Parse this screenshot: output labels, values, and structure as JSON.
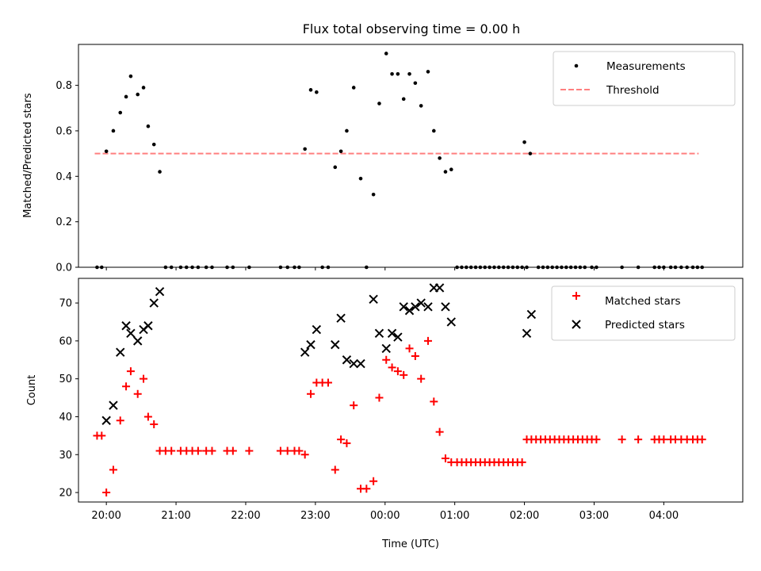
{
  "title": "Flux total observing time = 0.00 h",
  "colors": {
    "measure": "#000000",
    "threshold": "#ff7f7f",
    "matched": "#ff0000",
    "predicted": "#000000"
  },
  "chart_data": [
    {
      "type": "scatter",
      "ylabel": "Matched/Predicted stars",
      "xlim": [
        "19:36",
        "05:08"
      ],
      "ylim": [
        0,
        0.98
      ],
      "yticks": [
        "0.0",
        "0.2",
        "0.4",
        "0.6",
        "0.8"
      ],
      "legend": {
        "placement": "top-right",
        "measurements": "Measurements",
        "threshold": "Threshold"
      },
      "threshold": {
        "value": 0.5,
        "x_range": [
          "19:50",
          "04:30"
        ]
      },
      "series": [
        {
          "name": "Measurements",
          "points": [
            [
              "19:52",
              0
            ],
            [
              "19:56",
              0
            ],
            [
              "20:00",
              0.51
            ],
            [
              "20:06",
              0.6
            ],
            [
              "20:12",
              0.68
            ],
            [
              "20:17",
              0.75
            ],
            [
              "20:21",
              0.84
            ],
            [
              "20:27",
              0.76
            ],
            [
              "20:32",
              0.79
            ],
            [
              "20:36",
              0.62
            ],
            [
              "20:41",
              0.54
            ],
            [
              "20:46",
              0.42
            ],
            [
              "20:51",
              0
            ],
            [
              "20:56",
              0
            ],
            [
              "21:04",
              0
            ],
            [
              "21:09",
              0
            ],
            [
              "21:14",
              0
            ],
            [
              "21:19",
              0
            ],
            [
              "21:26",
              0
            ],
            [
              "21:31",
              0
            ],
            [
              "21:44",
              0
            ],
            [
              "21:49",
              0
            ],
            [
              "22:03",
              0
            ],
            [
              "22:30",
              0
            ],
            [
              "22:36",
              0
            ],
            [
              "22:42",
              0
            ],
            [
              "22:46",
              0
            ],
            [
              "22:51",
              0.52
            ],
            [
              "22:56",
              0.78
            ],
            [
              "23:01",
              0.77
            ],
            [
              "23:06",
              0
            ],
            [
              "23:11",
              0
            ],
            [
              "23:17",
              0.44
            ],
            [
              "23:22",
              0.51
            ],
            [
              "23:27",
              0.6
            ],
            [
              "23:33",
              0.79
            ],
            [
              "23:39",
              0.39
            ],
            [
              "23:44",
              0
            ],
            [
              "23:50",
              0.32
            ],
            [
              "23:55",
              0.72
            ],
            [
              "00:01",
              0.94
            ],
            [
              "00:06",
              0.85
            ],
            [
              "00:11",
              0.85
            ],
            [
              "00:16",
              0.74
            ],
            [
              "00:21",
              0.85
            ],
            [
              "00:26",
              0.81
            ],
            [
              "00:31",
              0.71
            ],
            [
              "00:37",
              0.86
            ],
            [
              "00:42",
              0.6
            ],
            [
              "00:47",
              0.48
            ],
            [
              "00:52",
              0.42
            ],
            [
              "00:57",
              0.43
            ],
            [
              "01:02",
              0
            ],
            [
              "01:06",
              0
            ],
            [
              "01:10",
              0
            ],
            [
              "01:14",
              0
            ],
            [
              "01:18",
              0
            ],
            [
              "01:22",
              0
            ],
            [
              "01:26",
              0
            ],
            [
              "01:30",
              0
            ],
            [
              "01:34",
              0
            ],
            [
              "01:38",
              0
            ],
            [
              "01:42",
              0
            ],
            [
              "01:46",
              0
            ],
            [
              "01:50",
              0
            ],
            [
              "01:54",
              0
            ],
            [
              "01:58",
              0
            ],
            [
              "02:02",
              0
            ],
            [
              "02:00",
              0.55
            ],
            [
              "02:05",
              0.5
            ],
            [
              "02:12",
              0
            ],
            [
              "02:16",
              0
            ],
            [
              "02:20",
              0
            ],
            [
              "02:24",
              0
            ],
            [
              "02:28",
              0
            ],
            [
              "02:32",
              0
            ],
            [
              "02:36",
              0
            ],
            [
              "02:40",
              0
            ],
            [
              "02:44",
              0
            ],
            [
              "02:48",
              0
            ],
            [
              "02:52",
              0
            ],
            [
              "02:58",
              0
            ],
            [
              "03:02",
              0
            ],
            [
              "03:24",
              0
            ],
            [
              "03:38",
              0
            ],
            [
              "03:52",
              0
            ],
            [
              "03:56",
              0
            ],
            [
              "04:00",
              0
            ],
            [
              "04:06",
              0
            ],
            [
              "04:10",
              0
            ],
            [
              "04:15",
              0
            ],
            [
              "04:20",
              0
            ],
            [
              "04:25",
              0
            ],
            [
              "04:29",
              0
            ],
            [
              "04:33",
              0
            ]
          ]
        }
      ]
    },
    {
      "type": "scatter",
      "ylabel": "Count",
      "xlabel": "Time (UTC)",
      "xlim": [
        "19:36",
        "05:08"
      ],
      "ylim": [
        17.5,
        76.5
      ],
      "yticks": [
        "20",
        "30",
        "40",
        "50",
        "60",
        "70"
      ],
      "xticks": [
        "20:00",
        "21:00",
        "22:00",
        "23:00",
        "00:00",
        "01:00",
        "02:00",
        "03:00",
        "04:00"
      ],
      "legend": {
        "placement": "top-right",
        "matched": "Matched stars",
        "predicted": "Predicted stars"
      },
      "series": [
        {
          "name": "Matched stars",
          "points": [
            [
              "19:52",
              35
            ],
            [
              "19:56",
              35
            ],
            [
              "20:00",
              20
            ],
            [
              "20:06",
              26
            ],
            [
              "20:12",
              39
            ],
            [
              "20:17",
              48
            ],
            [
              "20:21",
              52
            ],
            [
              "20:27",
              46
            ],
            [
              "20:32",
              50
            ],
            [
              "20:36",
              40
            ],
            [
              "20:41",
              38
            ],
            [
              "20:46",
              31
            ],
            [
              "20:51",
              31
            ],
            [
              "20:56",
              31
            ],
            [
              "21:04",
              31
            ],
            [
              "21:09",
              31
            ],
            [
              "21:14",
              31
            ],
            [
              "21:19",
              31
            ],
            [
              "21:26",
              31
            ],
            [
              "21:31",
              31
            ],
            [
              "21:44",
              31
            ],
            [
              "21:49",
              31
            ],
            [
              "22:03",
              31
            ],
            [
              "22:30",
              31
            ],
            [
              "22:36",
              31
            ],
            [
              "22:42",
              31
            ],
            [
              "22:46",
              31
            ],
            [
              "22:51",
              30
            ],
            [
              "22:56",
              46
            ],
            [
              "23:01",
              49
            ],
            [
              "23:06",
              49
            ],
            [
              "23:11",
              49
            ],
            [
              "23:17",
              26
            ],
            [
              "23:22",
              34
            ],
            [
              "23:27",
              33
            ],
            [
              "23:33",
              43
            ],
            [
              "23:39",
              21
            ],
            [
              "23:44",
              21
            ],
            [
              "23:50",
              23
            ],
            [
              "23:55",
              45
            ],
            [
              "00:01",
              55
            ],
            [
              "00:06",
              53
            ],
            [
              "00:11",
              52
            ],
            [
              "00:16",
              51
            ],
            [
              "00:21",
              58
            ],
            [
              "00:26",
              56
            ],
            [
              "00:31",
              50
            ],
            [
              "00:37",
              60
            ],
            [
              "00:42",
              44
            ],
            [
              "00:47",
              36
            ],
            [
              "00:52",
              29
            ],
            [
              "00:57",
              28
            ],
            [
              "01:02",
              28
            ],
            [
              "01:06",
              28
            ],
            [
              "01:10",
              28
            ],
            [
              "01:14",
              28
            ],
            [
              "01:18",
              28
            ],
            [
              "01:22",
              28
            ],
            [
              "01:26",
              28
            ],
            [
              "01:30",
              28
            ],
            [
              "01:34",
              28
            ],
            [
              "01:38",
              28
            ],
            [
              "01:42",
              28
            ],
            [
              "01:46",
              28
            ],
            [
              "01:50",
              28
            ],
            [
              "01:54",
              28
            ],
            [
              "01:58",
              28
            ],
            [
              "02:02",
              34
            ],
            [
              "02:06",
              34
            ],
            [
              "02:10",
              34
            ],
            [
              "02:14",
              34
            ],
            [
              "02:18",
              34
            ],
            [
              "02:22",
              34
            ],
            [
              "02:26",
              34
            ],
            [
              "02:30",
              34
            ],
            [
              "02:34",
              34
            ],
            [
              "02:38",
              34
            ],
            [
              "02:42",
              34
            ],
            [
              "02:46",
              34
            ],
            [
              "02:50",
              34
            ],
            [
              "02:54",
              34
            ],
            [
              "02:58",
              34
            ],
            [
              "03:02",
              34
            ],
            [
              "03:24",
              34
            ],
            [
              "03:38",
              34
            ],
            [
              "03:52",
              34
            ],
            [
              "03:56",
              34
            ],
            [
              "04:00",
              34
            ],
            [
              "04:06",
              34
            ],
            [
              "04:10",
              34
            ],
            [
              "04:15",
              34
            ],
            [
              "04:20",
              34
            ],
            [
              "04:25",
              34
            ],
            [
              "04:29",
              34
            ],
            [
              "04:33",
              34
            ]
          ]
        },
        {
          "name": "Predicted stars",
          "points": [
            [
              "20:00",
              39
            ],
            [
              "20:06",
              43
            ],
            [
              "20:12",
              57
            ],
            [
              "20:17",
              64
            ],
            [
              "20:21",
              62
            ],
            [
              "20:27",
              60
            ],
            [
              "20:32",
              63
            ],
            [
              "20:36",
              64
            ],
            [
              "20:41",
              70
            ],
            [
              "20:46",
              73
            ],
            [
              "22:51",
              57
            ],
            [
              "22:56",
              59
            ],
            [
              "23:01",
              63
            ],
            [
              "23:17",
              59
            ],
            [
              "23:22",
              66
            ],
            [
              "23:27",
              55
            ],
            [
              "23:33",
              54
            ],
            [
              "23:39",
              54
            ],
            [
              "23:50",
              71
            ],
            [
              "23:55",
              62
            ],
            [
              "00:01",
              58
            ],
            [
              "00:06",
              62
            ],
            [
              "00:11",
              61
            ],
            [
              "00:16",
              69
            ],
            [
              "00:21",
              68
            ],
            [
              "00:26",
              69
            ],
            [
              "00:31",
              70
            ],
            [
              "00:37",
              69
            ],
            [
              "00:42",
              74
            ],
            [
              "00:47",
              74
            ],
            [
              "00:52",
              69
            ],
            [
              "00:57",
              65
            ],
            [
              "02:02",
              62
            ],
            [
              "02:06",
              67
            ]
          ]
        }
      ]
    }
  ]
}
